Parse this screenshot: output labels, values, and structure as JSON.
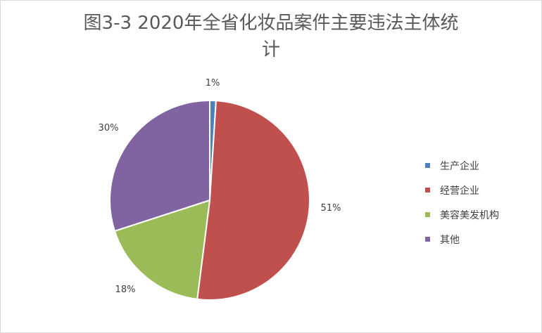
{
  "chart_data": {
    "type": "pie",
    "title_line1": "图3-3  2020年全省化妆品案件主要违法主体统",
    "title_line2": "计",
    "categories": [
      "生产企业",
      "经营企业",
      "美容美发机构",
      "其他"
    ],
    "values": [
      1,
      51,
      18,
      30
    ],
    "labels": [
      "1%",
      "51%",
      "18%",
      "30%"
    ],
    "colors": [
      "#4f81bd",
      "#c0504d",
      "#9bbb59",
      "#8064a2"
    ],
    "legend_position": "right"
  }
}
